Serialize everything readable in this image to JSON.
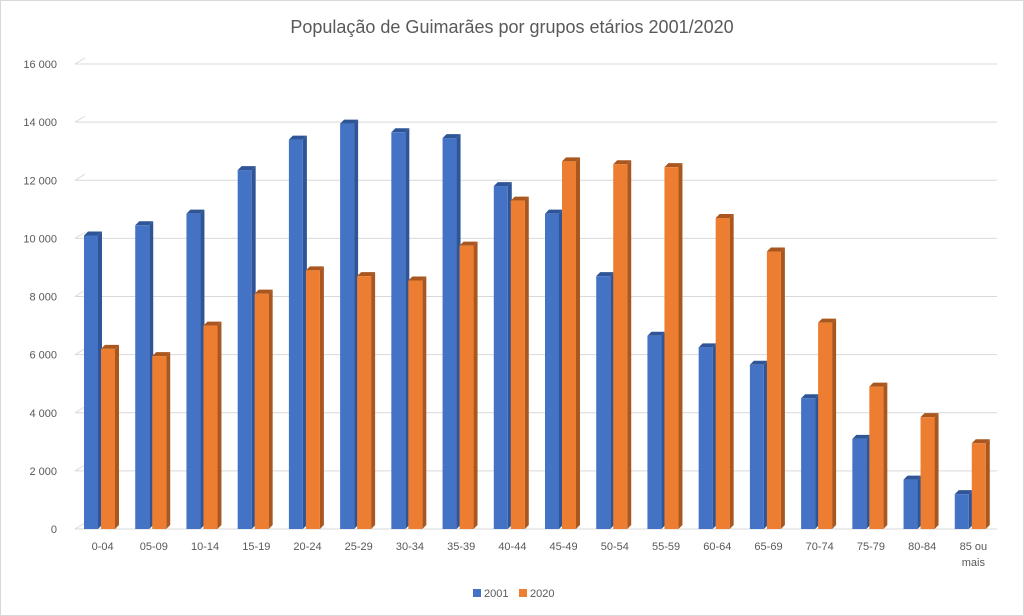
{
  "chart_data": {
    "type": "bar",
    "title": "População de Guimarães por grupos etários 2001/2020",
    "xlabel": "",
    "ylabel": "",
    "categories": [
      "0-04",
      "05-09",
      "10-14",
      "15-19",
      "20-24",
      "25-29",
      "30-34",
      "35-39",
      "40-44",
      "45-49",
      "50-54",
      "55-59",
      "60-64",
      "65-69",
      "70-74",
      "75-79",
      "80-84",
      "85 ou mais"
    ],
    "series": [
      {
        "name": "2001",
        "color": "#4472C4",
        "side_color": "#2F5597",
        "values": [
          10100,
          10450,
          10850,
          12350,
          13400,
          13950,
          13650,
          13450,
          11800,
          10850,
          8700,
          6650,
          6250,
          5650,
          4500,
          3100,
          1700,
          1200
        ]
      },
      {
        "name": "2020",
        "color": "#ED7D31",
        "side_color": "#A9561F",
        "values": [
          6200,
          5950,
          7000,
          8100,
          8900,
          8700,
          8550,
          9750,
          11300,
          12650,
          12550,
          12450,
          10700,
          9550,
          7100,
          4900,
          3850,
          2950
        ]
      }
    ],
    "yticks": [
      "0",
      "2 000",
      "4 000",
      "6 000",
      "8 000",
      "10 000",
      "12 000",
      "14 000",
      "16 000"
    ],
    "ylim": [
      0,
      16000
    ],
    "grid": true,
    "legend_position": "bottom"
  }
}
